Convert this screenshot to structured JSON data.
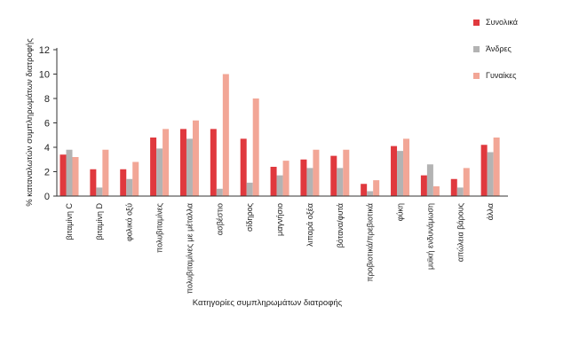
{
  "chart_data": {
    "type": "bar",
    "title": "",
    "xlabel": "Κατηγορίες συμπληρωμάτων διατροφής",
    "ylabel": "% καταναλωτών συμπληρωμάτων διατροφής",
    "ylim": [
      0,
      12
    ],
    "yticks": [
      0,
      2,
      4,
      6,
      8,
      10,
      12
    ],
    "grid": false,
    "legend_position": "top-right",
    "categories": [
      "βιταμίνη C",
      "βιταμίνη D",
      "φολικό οξύ",
      "πολυβιταμίνες",
      "πολυβιταμίνες με μέταλλα",
      "ασβέστιο",
      "σίδηρος",
      "μαγνήσιο",
      "λιπαρά οξέα",
      "βότανα/φυτά",
      "προβιοτικά/πρεβιοτικά",
      "φύκη",
      "μυϊκή ενδυνάμωση",
      "απώλεια βάρους",
      "άλλα"
    ],
    "series": [
      {
        "name": "Συνολικά",
        "color": "#e0393e",
        "values": [
          3.4,
          2.2,
          2.2,
          4.8,
          5.5,
          5.5,
          4.7,
          2.4,
          3.0,
          3.3,
          1.0,
          4.1,
          1.7,
          1.4,
          4.2
        ]
      },
      {
        "name": "Άνδρες",
        "color": "#b3b3b3",
        "values": [
          3.8,
          0.7,
          1.4,
          3.9,
          4.7,
          0.6,
          1.1,
          1.7,
          2.3,
          2.3,
          0.4,
          3.7,
          2.6,
          0.7,
          3.6
        ]
      },
      {
        "name": "Γυναίκες",
        "color": "#f2a696",
        "values": [
          3.2,
          3.8,
          2.8,
          5.5,
          6.2,
          10.0,
          8.0,
          2.9,
          3.8,
          3.8,
          1.3,
          4.7,
          0.8,
          2.3,
          4.8
        ]
      }
    ]
  }
}
